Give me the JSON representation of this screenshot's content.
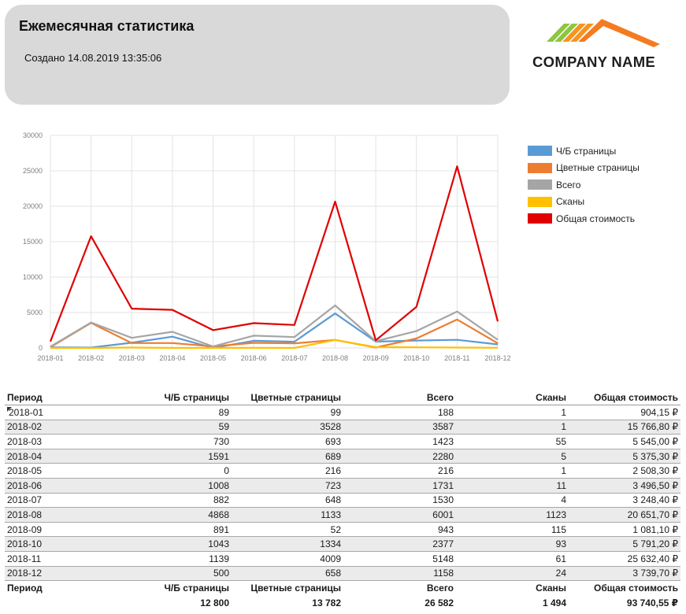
{
  "header": {
    "title": "Ежемесячная статистика",
    "created": "Создано 14.08.2019 13:35:06"
  },
  "logo": {
    "company_name": "COMPANY NAME",
    "colors": [
      "#8dc63f",
      "#f7941d",
      "#f47b20"
    ]
  },
  "chart_data": {
    "type": "line",
    "categories": [
      "2018-01",
      "2018-02",
      "2018-03",
      "2018-04",
      "2018-05",
      "2018-06",
      "2018-07",
      "2018-08",
      "2018-09",
      "2018-10",
      "2018-11",
      "2018-12"
    ],
    "ylim": [
      0,
      30000
    ],
    "yticks": [
      "0",
      "5000",
      "10000",
      "15000",
      "20000",
      "25000",
      "30000"
    ],
    "grid": true,
    "legend_position": "right",
    "series": [
      {
        "name": "Ч/Б страницы",
        "color": "#5b9bd5",
        "values": [
          89,
          59,
          730,
          1591,
          0,
          1008,
          882,
          4868,
          891,
          1043,
          1139,
          500
        ]
      },
      {
        "name": "Цветные страницы",
        "color": "#ed7d31",
        "values": [
          99,
          3528,
          693,
          689,
          216,
          723,
          648,
          1133,
          52,
          1334,
          4009,
          658
        ]
      },
      {
        "name": "Всего",
        "color": "#a5a5a5",
        "values": [
          188,
          3587,
          1423,
          2280,
          216,
          1731,
          1530,
          6001,
          943,
          2377,
          5148,
          1158
        ]
      },
      {
        "name": "Сканы",
        "color": "#ffc000",
        "values": [
          1,
          1,
          55,
          5,
          1,
          11,
          4,
          1123,
          115,
          93,
          61,
          24
        ]
      },
      {
        "name": "Общая стоимость",
        "color": "#e00000",
        "values": [
          904.15,
          15766.8,
          5545.0,
          5375.3,
          2508.3,
          3496.5,
          3248.4,
          20651.7,
          1081.1,
          5791.2,
          25632.4,
          3739.7
        ]
      }
    ]
  },
  "table": {
    "headers": [
      "Период",
      "Ч/Б страницы",
      "Цветные страницы",
      "Всего",
      "Сканы",
      "Общая стоимость"
    ],
    "rows": [
      [
        "2018-01",
        "89",
        "99",
        "188",
        "1",
        "904,15 ₽"
      ],
      [
        "2018-02",
        "59",
        "3528",
        "3587",
        "1",
        "15 766,80 ₽"
      ],
      [
        "2018-03",
        "730",
        "693",
        "1423",
        "55",
        "5 545,00 ₽"
      ],
      [
        "2018-04",
        "1591",
        "689",
        "2280",
        "5",
        "5 375,30 ₽"
      ],
      [
        "2018-05",
        "0",
        "216",
        "216",
        "1",
        "2 508,30 ₽"
      ],
      [
        "2018-06",
        "1008",
        "723",
        "1731",
        "11",
        "3 496,50 ₽"
      ],
      [
        "2018-07",
        "882",
        "648",
        "1530",
        "4",
        "3 248,40 ₽"
      ],
      [
        "2018-08",
        "4868",
        "1133",
        "6001",
        "1123",
        "20 651,70 ₽"
      ],
      [
        "2018-09",
        "891",
        "52",
        "943",
        "115",
        "1 081,10 ₽"
      ],
      [
        "2018-10",
        "1043",
        "1334",
        "2377",
        "93",
        "5 791,20 ₽"
      ],
      [
        "2018-11",
        "1139",
        "4009",
        "5148",
        "61",
        "25 632,40 ₽"
      ],
      [
        "2018-12",
        "500",
        "658",
        "1158",
        "24",
        "3 739,70 ₽"
      ]
    ],
    "footer_headers": [
      "Период",
      "Ч/Б страницы",
      "Цветные страницы",
      "Всего",
      "Сканы",
      "Общая стоимость"
    ],
    "totals": [
      "",
      "12 800",
      "13 782",
      "26 582",
      "1 494",
      "93 740,55 ₽"
    ]
  }
}
